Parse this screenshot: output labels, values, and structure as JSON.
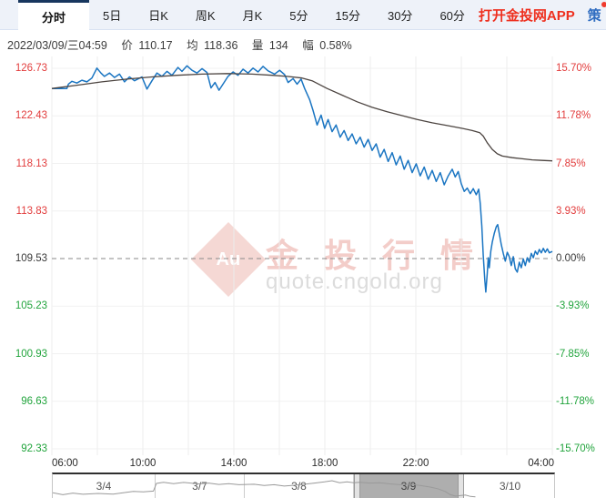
{
  "tabs": {
    "items": [
      "分时",
      "5日",
      "日K",
      "周K",
      "月K",
      "5分",
      "15分",
      "30分",
      "60分"
    ],
    "active": "分时",
    "app_link": "打开金投网APP",
    "strategy": "策"
  },
  "info_bar": {
    "datetime": "2022/03/09/三04:59",
    "price_label": "价",
    "price": "110.17",
    "avg_label": "均",
    "avg": "118.36",
    "volume_label": "量",
    "volume": "134",
    "range_label": "幅",
    "range": "0.58%"
  },
  "watermark": {
    "logo": "Au",
    "title": "金投行情",
    "url": "quote.cngold.org"
  },
  "colors": {
    "price_line": "#1a75c2",
    "average_line": "#4c4440",
    "up": "#e23c3c",
    "down": "#21a43c",
    "neutral": "#3a3a3a",
    "app_link": "#ee2f1e",
    "icon_blue": "#2e6cc0",
    "active_tab_border": "#17365e",
    "selected_range_bg": "#aeaeae"
  },
  "chart_data": {
    "type": "line",
    "x_axis_labels": [
      "06:00",
      "10:00",
      "14:00",
      "18:00",
      "22:00",
      "04:00"
    ],
    "y_axis_left": [
      "126.73",
      "122.43",
      "118.13",
      "113.83",
      "109.53",
      "105.23",
      "100.93",
      "96.63",
      "92.33"
    ],
    "y_axis_right": [
      "15.70%",
      "11.78%",
      "7.85%",
      "3.93%",
      "0.00%",
      "-3.93%",
      "-7.85%",
      "-11.78%",
      "-15.70%"
    ],
    "y_levels": [
      126.73,
      122.43,
      118.13,
      113.83,
      109.53,
      105.23,
      100.93,
      96.63,
      92.33
    ],
    "ylim": [
      92.33,
      126.73
    ],
    "prev_close": 109.53,
    "last_price": 110.17,
    "average_price": 118.36,
    "volume": 134,
    "change_pct": "0.58%",
    "grid": true,
    "series": [
      {
        "name": "price",
        "color": "#1a75c2",
        "points": [
          [
            0.0,
            124.9
          ],
          [
            0.03,
            124.9
          ],
          [
            0.033,
            125.3
          ],
          [
            0.04,
            125.55
          ],
          [
            0.05,
            125.4
          ],
          [
            0.06,
            125.65
          ],
          [
            0.07,
            125.5
          ],
          [
            0.08,
            125.85
          ],
          [
            0.09,
            126.75
          ],
          [
            0.098,
            126.3
          ],
          [
            0.105,
            126.0
          ],
          [
            0.115,
            126.3
          ],
          [
            0.125,
            125.9
          ],
          [
            0.135,
            126.2
          ],
          [
            0.145,
            125.5
          ],
          [
            0.155,
            125.95
          ],
          [
            0.165,
            125.6
          ],
          [
            0.18,
            125.95
          ],
          [
            0.19,
            124.85
          ],
          [
            0.2,
            125.6
          ],
          [
            0.21,
            126.3
          ],
          [
            0.22,
            126.0
          ],
          [
            0.23,
            126.45
          ],
          [
            0.24,
            126.1
          ],
          [
            0.252,
            126.8
          ],
          [
            0.26,
            126.45
          ],
          [
            0.27,
            126.95
          ],
          [
            0.28,
            126.55
          ],
          [
            0.29,
            126.3
          ],
          [
            0.3,
            126.7
          ],
          [
            0.31,
            126.35
          ],
          [
            0.318,
            124.95
          ],
          [
            0.326,
            125.45
          ],
          [
            0.334,
            124.75
          ],
          [
            0.342,
            125.3
          ],
          [
            0.352,
            126.0
          ],
          [
            0.362,
            126.4
          ],
          [
            0.372,
            126.1
          ],
          [
            0.382,
            126.65
          ],
          [
            0.392,
            126.3
          ],
          [
            0.402,
            126.75
          ],
          [
            0.412,
            126.4
          ],
          [
            0.422,
            126.9
          ],
          [
            0.432,
            126.5
          ],
          [
            0.445,
            126.2
          ],
          [
            0.455,
            126.55
          ],
          [
            0.465,
            126.15
          ],
          [
            0.472,
            125.45
          ],
          [
            0.482,
            125.8
          ],
          [
            0.49,
            125.3
          ],
          [
            0.498,
            125.75
          ],
          [
            0.505,
            124.9
          ],
          [
            0.515,
            123.9
          ],
          [
            0.522,
            122.9
          ],
          [
            0.53,
            121.6
          ],
          [
            0.538,
            122.5
          ],
          [
            0.545,
            121.3
          ],
          [
            0.552,
            122.1
          ],
          [
            0.56,
            121.0
          ],
          [
            0.568,
            121.6
          ],
          [
            0.576,
            120.5
          ],
          [
            0.584,
            121.1
          ],
          [
            0.592,
            120.2
          ],
          [
            0.6,
            120.8
          ],
          [
            0.608,
            119.9
          ],
          [
            0.616,
            120.5
          ],
          [
            0.624,
            119.6
          ],
          [
            0.632,
            120.3
          ],
          [
            0.64,
            119.3
          ],
          [
            0.648,
            119.9
          ],
          [
            0.656,
            118.7
          ],
          [
            0.664,
            119.4
          ],
          [
            0.672,
            118.3
          ],
          [
            0.68,
            119.1
          ],
          [
            0.688,
            118.0
          ],
          [
            0.696,
            118.8
          ],
          [
            0.704,
            117.6
          ],
          [
            0.712,
            118.4
          ],
          [
            0.72,
            117.3
          ],
          [
            0.728,
            118.1
          ],
          [
            0.736,
            117.0
          ],
          [
            0.744,
            117.8
          ],
          [
            0.752,
            116.7
          ],
          [
            0.76,
            117.5
          ],
          [
            0.768,
            116.5
          ],
          [
            0.776,
            117.3
          ],
          [
            0.784,
            116.2
          ],
          [
            0.792,
            117.0
          ],
          [
            0.8,
            117.6
          ],
          [
            0.806,
            116.9
          ],
          [
            0.812,
            117.4
          ],
          [
            0.818,
            116.3
          ],
          [
            0.824,
            115.6
          ],
          [
            0.83,
            115.9
          ],
          [
            0.836,
            115.4
          ],
          [
            0.842,
            115.85
          ],
          [
            0.848,
            115.3
          ],
          [
            0.853,
            115.8
          ],
          [
            0.856,
            114.5
          ],
          [
            0.859,
            112.5
          ],
          [
            0.862,
            109.8
          ],
          [
            0.865,
            107.6
          ],
          [
            0.867,
            106.5
          ],
          [
            0.87,
            108.2
          ],
          [
            0.872,
            109.6
          ],
          [
            0.874,
            108.7
          ],
          [
            0.877,
            110.2
          ],
          [
            0.88,
            111.0
          ],
          [
            0.884,
            111.8
          ],
          [
            0.888,
            112.4
          ],
          [
            0.891,
            112.6
          ],
          [
            0.894,
            111.8
          ],
          [
            0.898,
            110.8
          ],
          [
            0.902,
            110.0
          ],
          [
            0.906,
            109.3
          ],
          [
            0.91,
            110.1
          ],
          [
            0.914,
            109.7
          ],
          [
            0.918,
            108.9
          ],
          [
            0.922,
            109.7
          ],
          [
            0.926,
            108.6
          ],
          [
            0.93,
            108.3
          ],
          [
            0.934,
            109.2
          ],
          [
            0.938,
            108.7
          ],
          [
            0.942,
            109.5
          ],
          [
            0.946,
            108.9
          ],
          [
            0.95,
            109.6
          ],
          [
            0.954,
            109.2
          ],
          [
            0.958,
            110.0
          ],
          [
            0.962,
            109.6
          ],
          [
            0.966,
            110.2
          ],
          [
            0.97,
            109.9
          ],
          [
            0.974,
            110.35
          ],
          [
            0.978,
            110.05
          ],
          [
            0.982,
            110.45
          ],
          [
            0.986,
            110.1
          ],
          [
            0.99,
            110.4
          ],
          [
            0.994,
            110.05
          ],
          [
            1.0,
            110.17
          ]
        ]
      },
      {
        "name": "average",
        "color": "#4c4440",
        "points": [
          [
            0.0,
            124.9
          ],
          [
            0.05,
            125.2
          ],
          [
            0.1,
            125.5
          ],
          [
            0.15,
            125.75
          ],
          [
            0.2,
            125.95
          ],
          [
            0.25,
            126.1
          ],
          [
            0.3,
            126.2
          ],
          [
            0.35,
            126.25
          ],
          [
            0.4,
            126.2
          ],
          [
            0.44,
            126.1
          ],
          [
            0.47,
            126.0
          ],
          [
            0.5,
            125.85
          ],
          [
            0.52,
            125.6
          ],
          [
            0.55,
            124.9
          ],
          [
            0.58,
            124.3
          ],
          [
            0.61,
            123.7
          ],
          [
            0.64,
            123.2
          ],
          [
            0.67,
            122.8
          ],
          [
            0.7,
            122.45
          ],
          [
            0.73,
            122.1
          ],
          [
            0.76,
            121.8
          ],
          [
            0.79,
            121.55
          ],
          [
            0.82,
            121.3
          ],
          [
            0.84,
            121.1
          ],
          [
            0.855,
            120.9
          ],
          [
            0.862,
            120.6
          ],
          [
            0.87,
            120.0
          ],
          [
            0.88,
            119.4
          ],
          [
            0.89,
            119.0
          ],
          [
            0.9,
            118.8
          ],
          [
            0.92,
            118.65
          ],
          [
            0.94,
            118.55
          ],
          [
            0.96,
            118.45
          ],
          [
            0.98,
            118.4
          ],
          [
            1.0,
            118.36
          ]
        ]
      }
    ],
    "navigator": {
      "dates": [
        "3/4",
        "3/7",
        "3/8",
        "3/9",
        "3/10"
      ],
      "selected": "3/9",
      "selected_index": 3,
      "minimap_points": [
        [
          0.0,
          0.78
        ],
        [
          0.02,
          0.88
        ],
        [
          0.04,
          0.8
        ],
        [
          0.06,
          0.86
        ],
        [
          0.09,
          0.82
        ],
        [
          0.12,
          0.85
        ],
        [
          0.14,
          0.78
        ],
        [
          0.16,
          0.72
        ],
        [
          0.18,
          0.74
        ],
        [
          0.2,
          0.7
        ],
        [
          0.206,
          0.32
        ],
        [
          0.22,
          0.26
        ],
        [
          0.24,
          0.33
        ],
        [
          0.26,
          0.27
        ],
        [
          0.29,
          0.34
        ],
        [
          0.31,
          0.3
        ],
        [
          0.33,
          0.37
        ],
        [
          0.35,
          0.33
        ],
        [
          0.37,
          0.38
        ],
        [
          0.4,
          0.36
        ],
        [
          0.42,
          0.42
        ],
        [
          0.44,
          0.38
        ],
        [
          0.46,
          0.45
        ],
        [
          0.48,
          0.41
        ],
        [
          0.5,
          0.36
        ],
        [
          0.52,
          0.3
        ],
        [
          0.54,
          0.24
        ],
        [
          0.555,
          0.18
        ],
        [
          0.57,
          0.28
        ],
        [
          0.585,
          0.24
        ],
        [
          0.598,
          0.28
        ],
        [
          0.61,
          0.26
        ],
        [
          0.63,
          0.3
        ],
        [
          0.65,
          0.28
        ],
        [
          0.67,
          0.34
        ],
        [
          0.69,
          0.38
        ],
        [
          0.71,
          0.36
        ],
        [
          0.73,
          0.42
        ],
        [
          0.75,
          0.5
        ],
        [
          0.765,
          0.58
        ],
        [
          0.78,
          0.72
        ],
        [
          0.79,
          0.88
        ],
        [
          0.8,
          0.95
        ],
        [
          0.82,
          0.9
        ],
        [
          0.83,
          0.97
        ],
        [
          0.84,
          0.99
        ]
      ]
    }
  }
}
